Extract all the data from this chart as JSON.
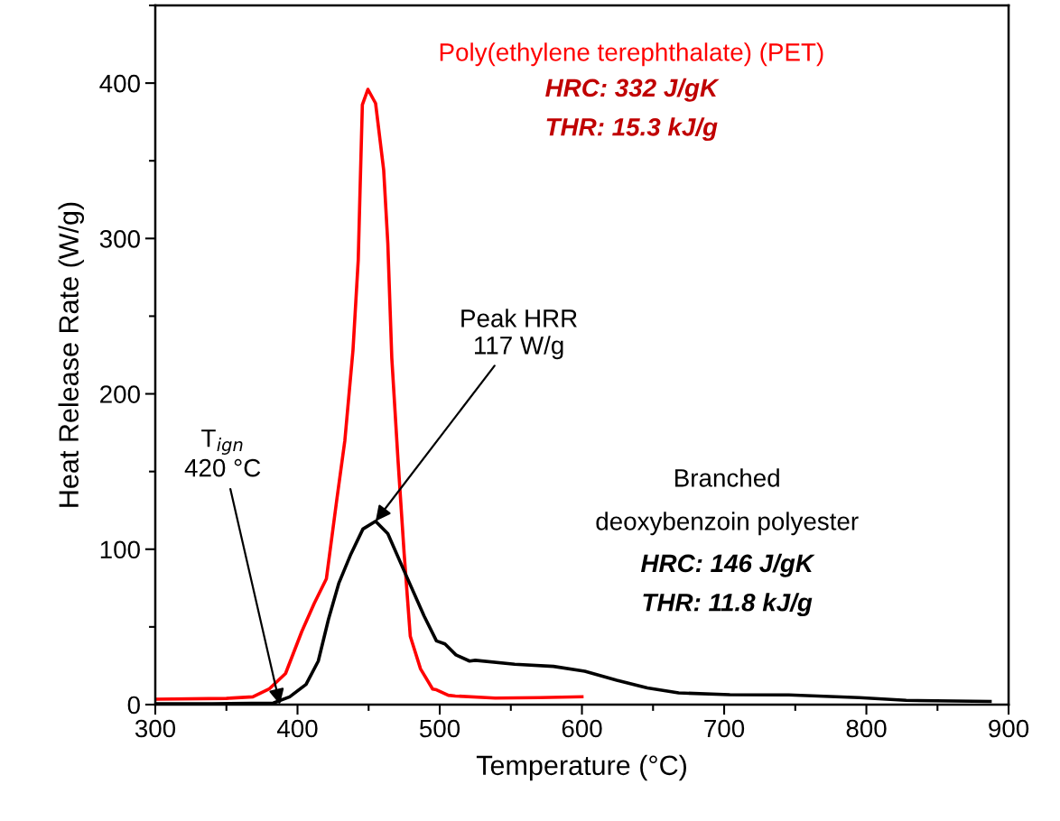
{
  "chart_data": {
    "type": "line",
    "xlabel": "Temperature (°C)",
    "ylabel": "Heat Release Rate (W/g)",
    "xlim": [
      300,
      900
    ],
    "ylim": [
      0,
      450
    ],
    "xticks": [
      300,
      400,
      500,
      600,
      700,
      800,
      900
    ],
    "yticks": [
      0,
      100,
      200,
      300,
      400
    ],
    "grid": false,
    "legend": false,
    "marker": "none",
    "line_style": "solid",
    "series": [
      {
        "name": "Poly(ethylene terephthalate) (PET)",
        "color": "#ff0000",
        "x": [
          300,
          350,
          368.6,
          380,
          391.6,
          403,
          411.7,
          420.3,
          427.5,
          433.3,
          439,
          442.7,
          443.9,
          445.6,
          449.5,
          454.9,
          460.6,
          463.5,
          466.3,
          470.7,
          475,
          479.3,
          486.5,
          495,
          497.7,
          506,
          511,
          539,
          570,
          600
        ],
        "values": [
          3.5,
          4,
          5,
          10,
          20,
          47,
          65,
          81,
          131,
          170,
          228,
          286,
          328,
          386,
          396,
          387,
          344,
          297,
          223,
          157,
          97,
          44,
          23,
          10,
          9.5,
          6,
          5.5,
          4.2,
          4.5,
          5
        ]
      },
      {
        "name": "Branched deoxybenzoin polyester",
        "color": "#000000",
        "x": [
          300,
          340,
          383,
          394.5,
          406,
          414.6,
          421.8,
          429,
          437.6,
          446,
          454.9,
          463.5,
          475,
          489,
          497.7,
          503.7,
          511.4,
          521,
          525,
          552.7,
          580,
          602,
          624.5,
          646,
          668,
          704,
          745.5,
          795,
          828,
          887
        ],
        "values": [
          0.5,
          0.5,
          1,
          5,
          13,
          28,
          55,
          78,
          97,
          113,
          118,
          110,
          86,
          57,
          41,
          39,
          32,
          28,
          28.5,
          26,
          24.6,
          21.5,
          15.7,
          10.7,
          7.5,
          6.4,
          6.2,
          4.5,
          2.7,
          2
        ]
      }
    ],
    "annotations": [
      {
        "text": "T$_{ign}$\n420 °C",
        "x": 387.6,
        "y": 0
      },
      {
        "text": "Peak HRR\n117 W/g",
        "x": 454.9,
        "y": 118
      },
      "HRC: 332 J/gK",
      "THR: 15.3 kJ/g",
      "HRC: 146 J/gK",
      "THR: 11.8 kJ/g"
    ]
  }
}
